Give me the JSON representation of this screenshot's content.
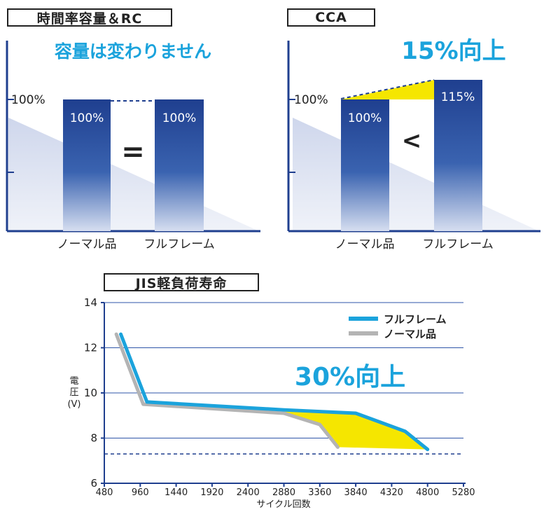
{
  "chart_data": [
    {
      "type": "bar",
      "title": "時間率容量＆RC",
      "headline": "容量は変わりません",
      "categories": [
        "ノーマル品",
        "フルフレーム"
      ],
      "values": [
        100,
        100
      ],
      "value_labels": [
        "100%",
        "100%"
      ],
      "baseline_label": "100%",
      "comparison_symbol": "=",
      "colors": {
        "bar": "#1f3f8f",
        "headline": "#1ba3dc"
      }
    },
    {
      "type": "bar",
      "title": "CCA",
      "headline": "15%向上",
      "categories": [
        "ノーマル品",
        "フルフレーム"
      ],
      "values": [
        100,
        115
      ],
      "value_labels": [
        "100%",
        "115%"
      ],
      "baseline_label": "100%",
      "comparison_symbol": "<",
      "colors": {
        "bar": "#1f3f8f",
        "highlight": "#f5e600",
        "headline": "#1ba3dc"
      }
    },
    {
      "type": "line",
      "title": "JIS軽負荷寿命",
      "headline": "30%向上",
      "xlabel": "サイクル回数",
      "ylabel": [
        "電",
        "圧",
        "(V)"
      ],
      "xlim": [
        480,
        5280
      ],
      "ylim": [
        6,
        14
      ],
      "xticks": [
        480,
        960,
        1440,
        1920,
        2400,
        2880,
        3360,
        3840,
        4320,
        4800,
        5280
      ],
      "yticks": [
        6,
        8,
        10,
        12,
        14
      ],
      "reference_line": 7.3,
      "legend_position": "top-right",
      "series": [
        {
          "name": "フルフレーム",
          "color": "#1ba3dc",
          "x": [
            700,
            1050,
            2880,
            3840,
            4500,
            4800
          ],
          "y": [
            12.6,
            9.6,
            9.25,
            9.1,
            8.3,
            7.5
          ]
        },
        {
          "name": "ノーマル品",
          "color": "#b4b4b4",
          "x": [
            640,
            1000,
            2880,
            3360,
            3600
          ],
          "y": [
            12.6,
            9.5,
            9.1,
            8.6,
            7.6
          ]
        }
      ]
    }
  ]
}
